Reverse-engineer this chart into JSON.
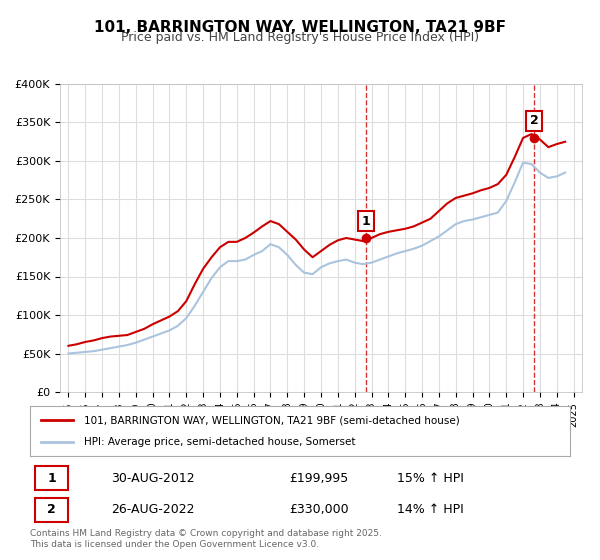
{
  "title": "101, BARRINGTON WAY, WELLINGTON, TA21 9BF",
  "subtitle": "Price paid vs. HM Land Registry's House Price Index (HPI)",
  "legend_line1": "101, BARRINGTON WAY, WELLINGTON, TA21 9BF (semi-detached house)",
  "legend_line2": "HPI: Average price, semi-detached house, Somerset",
  "transaction1_label": "1",
  "transaction1_date": "30-AUG-2012",
  "transaction1_price": "£199,995",
  "transaction1_hpi": "15% ↑ HPI",
  "transaction2_label": "2",
  "transaction2_date": "26-AUG-2022",
  "transaction2_price": "£330,000",
  "transaction2_hpi": "14% ↑ HPI",
  "footer": "Contains HM Land Registry data © Crown copyright and database right 2025.\nThis data is licensed under the Open Government Licence v3.0.",
  "price_color": "#cc0000",
  "hpi_color": "#aac4dd",
  "background_color": "#ffffff",
  "grid_color": "#dddddd",
  "ylim": [
    0,
    400000
  ],
  "yticks": [
    0,
    50000,
    100000,
    150000,
    200000,
    250000,
    300000,
    350000,
    400000
  ],
  "ytick_labels": [
    "£0",
    "£50K",
    "£100K",
    "£150K",
    "£200K",
    "£250K",
    "£300K",
    "£350K",
    "£400K"
  ],
  "xlim_start": 1994.5,
  "xlim_end": 2025.5,
  "transaction1_x": 2012.67,
  "transaction1_y": 199995,
  "transaction2_x": 2022.67,
  "transaction2_y": 330000,
  "vline1_x": 2012.67,
  "vline2_x": 2022.67,
  "price_data": {
    "years": [
      1995.0,
      1995.5,
      1996.0,
      1996.5,
      1997.0,
      1997.5,
      1998.0,
      1998.5,
      1999.0,
      1999.5,
      2000.0,
      2000.5,
      2001.0,
      2001.5,
      2002.0,
      2002.5,
      2003.0,
      2003.5,
      2004.0,
      2004.5,
      2005.0,
      2005.5,
      2006.0,
      2006.5,
      2007.0,
      2007.5,
      2008.0,
      2008.5,
      2009.0,
      2009.5,
      2010.0,
      2010.5,
      2011.0,
      2011.5,
      2012.0,
      2012.5,
      2013.0,
      2013.5,
      2014.0,
      2014.5,
      2015.0,
      2015.5,
      2016.0,
      2016.5,
      2017.0,
      2017.5,
      2018.0,
      2018.5,
      2019.0,
      2019.5,
      2020.0,
      2020.5,
      2021.0,
      2021.5,
      2022.0,
      2022.5,
      2023.0,
      2023.5,
      2024.0,
      2024.5
    ],
    "values": [
      60000,
      62000,
      65000,
      67000,
      70000,
      72000,
      73000,
      74000,
      78000,
      82000,
      88000,
      93000,
      98000,
      105000,
      118000,
      140000,
      160000,
      175000,
      188000,
      195000,
      195000,
      200000,
      207000,
      215000,
      222000,
      218000,
      208000,
      198000,
      185000,
      175000,
      183000,
      191000,
      197000,
      200000,
      198000,
      196000,
      200000,
      205000,
      208000,
      210000,
      212000,
      215000,
      220000,
      225000,
      235000,
      245000,
      252000,
      255000,
      258000,
      262000,
      265000,
      270000,
      282000,
      305000,
      330000,
      335000,
      328000,
      318000,
      322000,
      325000
    ]
  },
  "hpi_data": {
    "years": [
      1995.0,
      1995.5,
      1996.0,
      1996.5,
      1997.0,
      1997.5,
      1998.0,
      1998.5,
      1999.0,
      1999.5,
      2000.0,
      2000.5,
      2001.0,
      2001.5,
      2002.0,
      2002.5,
      2003.0,
      2003.5,
      2004.0,
      2004.5,
      2005.0,
      2005.5,
      2006.0,
      2006.5,
      2007.0,
      2007.5,
      2008.0,
      2008.5,
      2009.0,
      2009.5,
      2010.0,
      2010.5,
      2011.0,
      2011.5,
      2012.0,
      2012.5,
      2013.0,
      2013.5,
      2014.0,
      2014.5,
      2015.0,
      2015.5,
      2016.0,
      2016.5,
      2017.0,
      2017.5,
      2018.0,
      2018.5,
      2019.0,
      2019.5,
      2020.0,
      2020.5,
      2021.0,
      2021.5,
      2022.0,
      2022.5,
      2023.0,
      2023.5,
      2024.0,
      2024.5
    ],
    "values": [
      50000,
      51000,
      52000,
      53000,
      55000,
      57000,
      59000,
      61000,
      64000,
      68000,
      72000,
      76000,
      80000,
      86000,
      96000,
      112000,
      130000,
      148000,
      162000,
      170000,
      170000,
      172000,
      178000,
      183000,
      192000,
      188000,
      178000,
      165000,
      155000,
      153000,
      162000,
      167000,
      170000,
      172000,
      168000,
      166000,
      168000,
      172000,
      176000,
      180000,
      183000,
      186000,
      190000,
      196000,
      202000,
      210000,
      218000,
      222000,
      224000,
      227000,
      230000,
      233000,
      248000,
      272000,
      298000,
      296000,
      285000,
      278000,
      280000,
      285000
    ]
  }
}
